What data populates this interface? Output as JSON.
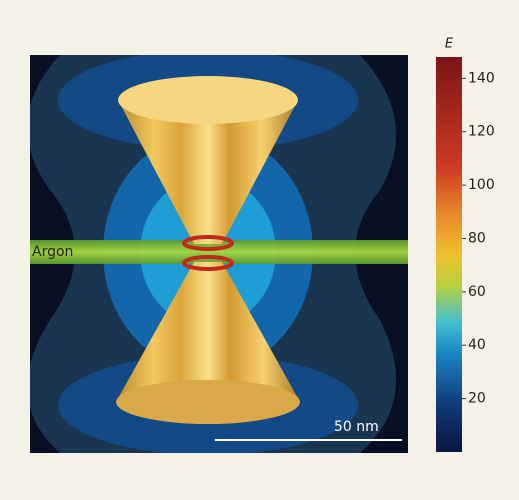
{
  "colorbar": {
    "label": "E",
    "lim": [
      0,
      148
    ],
    "ticks": [
      20,
      40,
      60,
      80,
      100,
      120,
      140
    ]
  },
  "labels": {
    "beam": "Argon",
    "scale_bar": "50 nm"
  }
}
